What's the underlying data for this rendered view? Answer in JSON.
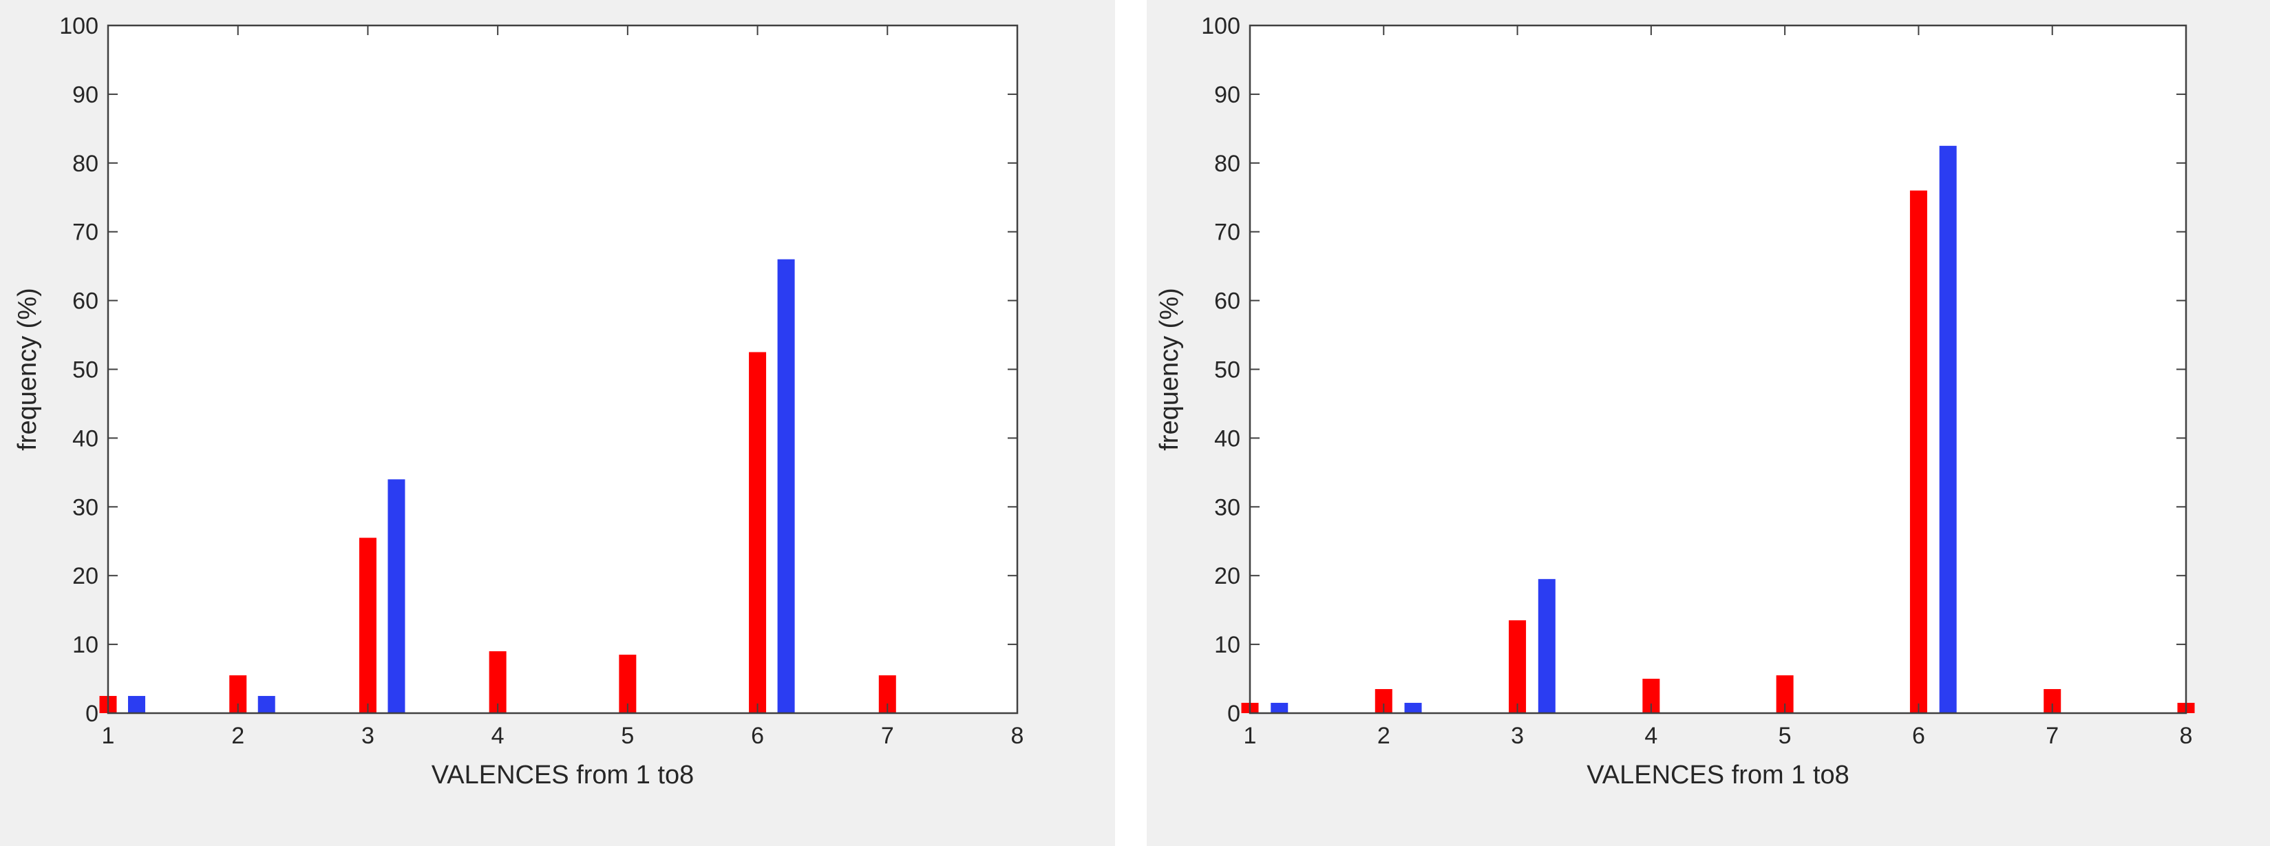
{
  "colors": {
    "series_a": "#ff0000",
    "series_b": "#2b3df2",
    "axis": "#404040",
    "panel_bg": "#f0f0f0",
    "plot_bg": "#ffffff"
  },
  "chart_data": [
    {
      "type": "bar",
      "xlabel": "VALENCES from 1 to8",
      "ylabel": "frequency (%)",
      "xlim": [
        1,
        8
      ],
      "ylim": [
        0,
        100
      ],
      "xticks": [
        "1",
        "2",
        "3",
        "4",
        "5",
        "6",
        "7",
        "8"
      ],
      "yticks": [
        "0",
        "10",
        "20",
        "30",
        "40",
        "50",
        "60",
        "70",
        "80",
        "90",
        "100"
      ],
      "grid": false,
      "series": [
        {
          "color": "#ff0000",
          "x": [
            1,
            2,
            3,
            4,
            5,
            6,
            7
          ],
          "values": [
            2.5,
            5.5,
            25.5,
            9,
            8.5,
            52.5,
            5.5
          ]
        },
        {
          "color": "#2b3df2",
          "x": [
            1.22,
            2.22,
            3.22,
            6.22
          ],
          "values": [
            2.5,
            2.5,
            34,
            66
          ]
        }
      ]
    },
    {
      "type": "bar",
      "xlabel": "VALENCES from 1 to8",
      "ylabel": "frequency (%)",
      "xlim": [
        1,
        8
      ],
      "ylim": [
        0,
        100
      ],
      "xticks": [
        "1",
        "2",
        "3",
        "4",
        "5",
        "6",
        "7",
        "8"
      ],
      "yticks": [
        "0",
        "10",
        "20",
        "30",
        "40",
        "50",
        "60",
        "70",
        "80",
        "90",
        "100"
      ],
      "grid": false,
      "series": [
        {
          "color": "#ff0000",
          "x": [
            1,
            2,
            3,
            4,
            5,
            6,
            7,
            8
          ],
          "values": [
            1.5,
            3.5,
            13.5,
            5,
            5.5,
            76,
            3.5,
            1.5
          ]
        },
        {
          "color": "#2b3df2",
          "x": [
            1.22,
            2.22,
            3.22,
            6.22
          ],
          "values": [
            1.5,
            1.5,
            19.5,
            82.5
          ]
        }
      ]
    }
  ]
}
